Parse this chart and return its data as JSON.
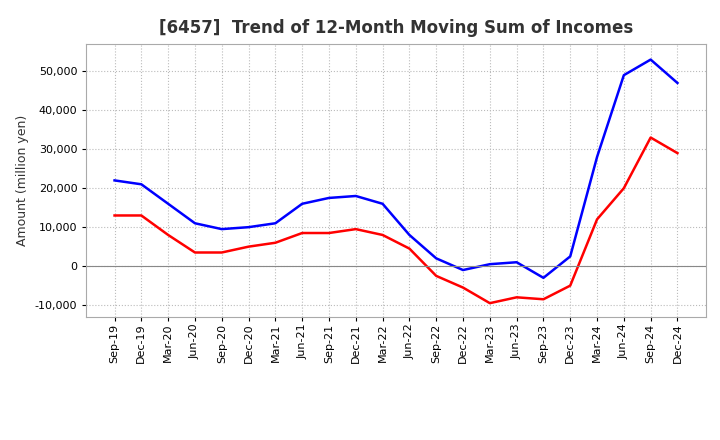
{
  "title": "[6457]  Trend of 12-Month Moving Sum of Incomes",
  "ylabel": "Amount (million yen)",
  "background_color": "#ffffff",
  "grid_color": "#bbbbbb",
  "x_labels": [
    "Sep-19",
    "Dec-19",
    "Mar-20",
    "Jun-20",
    "Sep-20",
    "Dec-20",
    "Mar-21",
    "Jun-21",
    "Sep-21",
    "Dec-21",
    "Mar-22",
    "Jun-22",
    "Sep-22",
    "Dec-22",
    "Mar-23",
    "Jun-23",
    "Sep-23",
    "Dec-23",
    "Mar-24",
    "Jun-24",
    "Sep-24",
    "Dec-24"
  ],
  "ordinary_income": [
    22000,
    21000,
    16000,
    11000,
    9500,
    10000,
    11000,
    16000,
    17500,
    18000,
    16000,
    8000,
    2000,
    -1000,
    500,
    1000,
    -3000,
    2500,
    28000,
    49000,
    53000,
    47000
  ],
  "net_income": [
    13000,
    13000,
    8000,
    3500,
    3500,
    5000,
    6000,
    8500,
    8500,
    9500,
    8000,
    4500,
    -2500,
    -5500,
    -9500,
    -8000,
    -8500,
    -5000,
    12000,
    20000,
    33000,
    29000
  ],
  "ordinary_color": "#0000ff",
  "net_color": "#ff0000",
  "ylim": [
    -13000,
    57000
  ],
  "yticks": [
    -10000,
    0,
    10000,
    20000,
    30000,
    40000,
    50000
  ],
  "line_width": 1.8,
  "title_fontsize": 12,
  "title_color": "#333333",
  "tick_fontsize": 8,
  "ylabel_fontsize": 9,
  "legend_fontsize": 10
}
